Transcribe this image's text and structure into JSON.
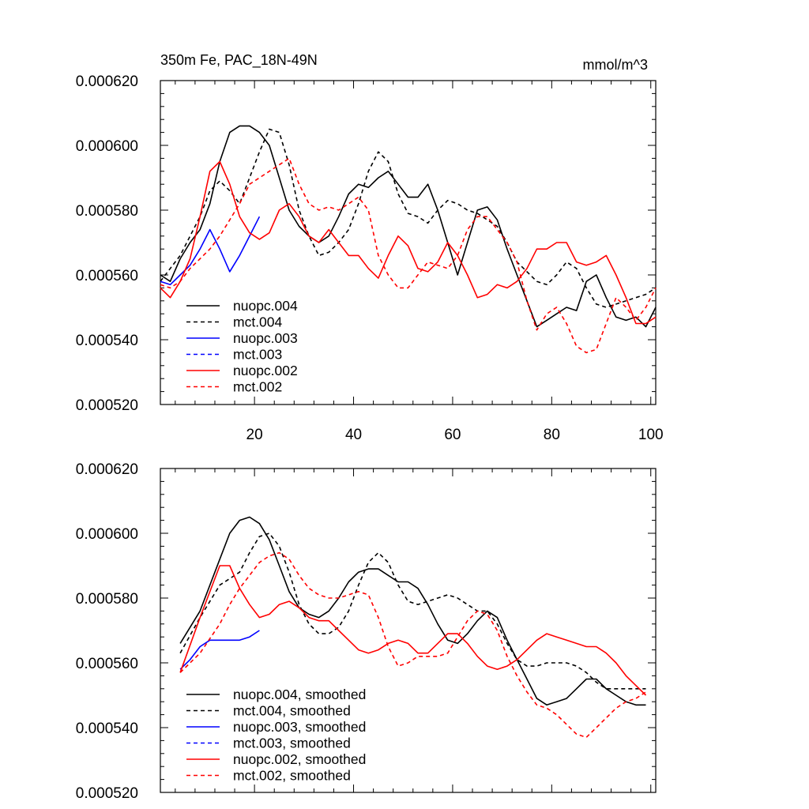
{
  "colors": {
    "black": "#000000",
    "blue": "#0000ff",
    "red": "#ff0000"
  },
  "chart_data": [
    {
      "type": "line",
      "title": "350m Fe, PAC_18N-49N",
      "units": "mmol/m^3",
      "xlim": [
        1,
        101
      ],
      "ylim": [
        0.00052,
        0.00062
      ],
      "xticks": [
        "20",
        "40",
        "60",
        "80",
        "100"
      ],
      "yticks": [
        "0.000520",
        "0.000540",
        "0.000560",
        "0.000580",
        "0.000600",
        "0.000620"
      ],
      "legend_position": "bottom-left",
      "series": [
        {
          "name": "nuopc.004",
          "color": "black",
          "dash": "solid",
          "x": [
            1,
            3,
            5,
            7,
            9,
            11,
            13,
            15,
            17,
            19,
            21,
            23,
            25,
            27,
            29,
            31,
            33,
            35,
            37,
            39,
            41,
            43,
            45,
            47,
            49,
            51,
            53,
            55,
            57,
            59,
            61,
            63,
            65,
            67,
            69,
            71,
            73,
            75,
            77,
            79,
            81,
            83,
            85,
            87,
            89,
            91,
            93,
            95,
            97,
            99,
            101
          ],
          "values": [
            0.00056,
            0.000558,
            0.000565,
            0.00057,
            0.000574,
            0.000582,
            0.000595,
            0.000604,
            0.000606,
            0.000606,
            0.000604,
            0.0006,
            0.00059,
            0.00058,
            0.000575,
            0.000572,
            0.00057,
            0.000572,
            0.000578,
            0.000585,
            0.000588,
            0.000587,
            0.00059,
            0.000592,
            0.000588,
            0.000584,
            0.000584,
            0.000588,
            0.00058,
            0.00057,
            0.00056,
            0.00057,
            0.00058,
            0.000581,
            0.000577,
            0.000568,
            0.00056,
            0.000552,
            0.000544,
            0.000546,
            0.000548,
            0.00055,
            0.000549,
            0.000558,
            0.00056,
            0.000553,
            0.000547,
            0.000546,
            0.000547,
            0.000544,
            0.00055
          ]
        },
        {
          "name": "mct.004",
          "color": "black",
          "dash": "dashed",
          "x": [
            1,
            3,
            5,
            7,
            9,
            11,
            13,
            15,
            17,
            19,
            21,
            23,
            25,
            27,
            29,
            31,
            33,
            35,
            37,
            39,
            41,
            43,
            45,
            47,
            49,
            51,
            53,
            55,
            57,
            59,
            61,
            63,
            65,
            67,
            69,
            71,
            73,
            75,
            77,
            79,
            81,
            83,
            85,
            87,
            89,
            91,
            93,
            95,
            97,
            99,
            101
          ],
          "values": [
            0.000558,
            0.000562,
            0.000566,
            0.000572,
            0.000578,
            0.000586,
            0.000589,
            0.000586,
            0.000582,
            0.00059,
            0.000598,
            0.000605,
            0.000604,
            0.000594,
            0.00058,
            0.000572,
            0.000566,
            0.000567,
            0.00057,
            0.000574,
            0.000582,
            0.000592,
            0.000598,
            0.000595,
            0.000585,
            0.000579,
            0.000578,
            0.000576,
            0.00058,
            0.000583,
            0.000582,
            0.00058,
            0.000579,
            0.000577,
            0.000575,
            0.00057,
            0.000564,
            0.000561,
            0.000558,
            0.000557,
            0.00056,
            0.000564,
            0.000562,
            0.000556,
            0.000551,
            0.00055,
            0.000551,
            0.000552,
            0.000553,
            0.000554,
            0.000556
          ]
        },
        {
          "name": "nuopc.003",
          "color": "blue",
          "dash": "solid",
          "x": [
            1,
            3,
            5,
            7,
            9,
            11,
            13,
            15,
            17,
            19,
            21
          ],
          "values": [
            0.000558,
            0.000557,
            0.00056,
            0.000563,
            0.000568,
            0.000574,
            0.000568,
            0.000561,
            0.000566,
            0.000572,
            0.000578
          ]
        },
        {
          "name": "mct.003",
          "color": "blue",
          "dash": "dashed",
          "x": [],
          "values": []
        },
        {
          "name": "nuopc.002",
          "color": "red",
          "dash": "solid",
          "x": [
            1,
            3,
            5,
            7,
            9,
            11,
            13,
            15,
            17,
            19,
            21,
            23,
            25,
            27,
            29,
            31,
            33,
            35,
            37,
            39,
            41,
            43,
            45,
            47,
            49,
            51,
            53,
            55,
            57,
            59,
            61,
            63,
            65,
            67,
            69,
            71,
            73,
            75,
            77,
            79,
            81,
            83,
            85,
            87,
            89,
            91,
            93,
            95,
            97,
            99,
            101
          ],
          "values": [
            0.000556,
            0.000553,
            0.000558,
            0.000565,
            0.000578,
            0.000592,
            0.000595,
            0.000588,
            0.000578,
            0.000573,
            0.000571,
            0.000573,
            0.00058,
            0.000582,
            0.000578,
            0.000572,
            0.00057,
            0.000574,
            0.00057,
            0.000566,
            0.000566,
            0.000562,
            0.000559,
            0.000566,
            0.000572,
            0.000569,
            0.000562,
            0.000561,
            0.000564,
            0.00057,
            0.000566,
            0.00056,
            0.000553,
            0.000554,
            0.000557,
            0.000556,
            0.000558,
            0.000562,
            0.000568,
            0.000568,
            0.00057,
            0.00057,
            0.000564,
            0.000563,
            0.000564,
            0.000566,
            0.00056,
            0.000553,
            0.000545,
            0.000545,
            0.000547
          ]
        },
        {
          "name": "mct.002",
          "color": "red",
          "dash": "dashed",
          "x": [
            1,
            3,
            5,
            7,
            9,
            11,
            13,
            15,
            17,
            19,
            21,
            23,
            25,
            27,
            29,
            31,
            33,
            35,
            37,
            39,
            41,
            43,
            45,
            47,
            49,
            51,
            53,
            55,
            57,
            59,
            61,
            63,
            65,
            67,
            69,
            71,
            73,
            75,
            77,
            79,
            81,
            83,
            85,
            87,
            89,
            91,
            93,
            95,
            97,
            99,
            101
          ],
          "values": [
            0.000557,
            0.000556,
            0.000558,
            0.000562,
            0.000565,
            0.000568,
            0.000572,
            0.000577,
            0.000582,
            0.000588,
            0.00059,
            0.000592,
            0.000594,
            0.000596,
            0.000588,
            0.000582,
            0.00058,
            0.000581,
            0.00058,
            0.000582,
            0.000584,
            0.00058,
            0.000566,
            0.00056,
            0.000556,
            0.000556,
            0.00056,
            0.000564,
            0.000563,
            0.000562,
            0.000566,
            0.000574,
            0.000578,
            0.000578,
            0.000574,
            0.00057,
            0.000564,
            0.000552,
            0.000543,
            0.000548,
            0.00055,
            0.000545,
            0.000538,
            0.000536,
            0.000537,
            0.000545,
            0.000553,
            0.00055,
            0.000546,
            0.00055,
            0.000556
          ]
        }
      ]
    },
    {
      "type": "line",
      "title": "",
      "units": "",
      "xlim": [
        1,
        101
      ],
      "ylim": [
        0.00052,
        0.00062
      ],
      "xticks": [],
      "yticks": [
        "0.000520",
        "0.000540",
        "0.000560",
        "0.000580",
        "0.000600",
        "0.000620"
      ],
      "legend_position": "bottom-left",
      "series": [
        {
          "name": "nuopc.004, smoothed",
          "color": "black",
          "dash": "solid",
          "x": [
            5,
            9,
            13,
            15,
            17,
            19,
            21,
            23,
            25,
            27,
            29,
            31,
            33,
            35,
            37,
            39,
            41,
            43,
            45,
            47,
            49,
            51,
            53,
            55,
            57,
            59,
            61,
            63,
            65,
            67,
            69,
            71,
            73,
            75,
            77,
            79,
            81,
            83,
            85,
            87,
            89,
            91,
            93,
            95,
            97,
            99
          ],
          "values": [
            0.000566,
            0.000576,
            0.000592,
            0.0006,
            0.000604,
            0.000605,
            0.000603,
            0.000598,
            0.00059,
            0.000582,
            0.000577,
            0.000575,
            0.000574,
            0.000576,
            0.00058,
            0.000585,
            0.000588,
            0.000589,
            0.000589,
            0.000587,
            0.000585,
            0.000585,
            0.000583,
            0.000578,
            0.000572,
            0.000567,
            0.000566,
            0.000569,
            0.000573,
            0.000576,
            0.000574,
            0.000567,
            0.000561,
            0.000555,
            0.000549,
            0.000547,
            0.000548,
            0.000549,
            0.000552,
            0.000555,
            0.000555,
            0.000552,
            0.00055,
            0.000548,
            0.000547,
            0.000547
          ]
        },
        {
          "name": "mct.004, smoothed",
          "color": "black",
          "dash": "dashed",
          "x": [
            5,
            9,
            13,
            15,
            17,
            19,
            21,
            23,
            25,
            27,
            29,
            31,
            33,
            35,
            37,
            39,
            41,
            43,
            45,
            47,
            49,
            51,
            53,
            55,
            57,
            59,
            61,
            63,
            65,
            67,
            69,
            71,
            73,
            75,
            77,
            79,
            81,
            83,
            85,
            87,
            89,
            91,
            93,
            95,
            97,
            99
          ],
          "values": [
            0.000563,
            0.000574,
            0.000584,
            0.000586,
            0.000588,
            0.000594,
            0.000599,
            0.0006,
            0.000596,
            0.000588,
            0.000578,
            0.000572,
            0.000569,
            0.000569,
            0.000571,
            0.000576,
            0.000584,
            0.000591,
            0.000594,
            0.000591,
            0.000584,
            0.000579,
            0.000578,
            0.000579,
            0.00058,
            0.000581,
            0.00058,
            0.000578,
            0.000576,
            0.000576,
            0.000572,
            0.000566,
            0.000561,
            0.000559,
            0.000559,
            0.00056,
            0.00056,
            0.00056,
            0.000559,
            0.000557,
            0.000554,
            0.000552,
            0.000552,
            0.000552,
            0.000552,
            0.000552
          ]
        },
        {
          "name": "nuopc.003, smoothed",
          "color": "blue",
          "dash": "solid",
          "x": [
            5,
            7,
            9,
            11,
            13,
            15,
            17,
            19,
            21
          ],
          "values": [
            0.000558,
            0.000561,
            0.000565,
            0.000567,
            0.000567,
            0.000567,
            0.000567,
            0.000568,
            0.00057
          ]
        },
        {
          "name": "mct.003, smoothed",
          "color": "blue",
          "dash": "dashed",
          "x": [],
          "values": []
        },
        {
          "name": "nuopc.002, smoothed",
          "color": "red",
          "dash": "solid",
          "x": [
            5,
            9,
            13,
            15,
            17,
            19,
            21,
            23,
            25,
            27,
            29,
            31,
            33,
            35,
            37,
            39,
            41,
            43,
            45,
            47,
            49,
            51,
            53,
            55,
            57,
            59,
            61,
            63,
            65,
            67,
            69,
            71,
            73,
            75,
            77,
            79,
            81,
            83,
            85,
            87,
            89,
            91,
            93,
            95,
            97,
            99
          ],
          "values": [
            0.000557,
            0.000574,
            0.00059,
            0.00059,
            0.000583,
            0.000578,
            0.000574,
            0.000575,
            0.000578,
            0.000579,
            0.000577,
            0.000574,
            0.000573,
            0.000573,
            0.00057,
            0.000567,
            0.000564,
            0.000563,
            0.000564,
            0.000566,
            0.000567,
            0.000566,
            0.000563,
            0.000563,
            0.000566,
            0.000569,
            0.000569,
            0.000566,
            0.000562,
            0.000559,
            0.000558,
            0.000559,
            0.000561,
            0.000564,
            0.000567,
            0.000569,
            0.000568,
            0.000567,
            0.000566,
            0.000565,
            0.000565,
            0.000563,
            0.00056,
            0.000556,
            0.000553,
            0.00055
          ]
        },
        {
          "name": "mct.002, smoothed",
          "color": "red",
          "dash": "dashed",
          "x": [
            5,
            9,
            13,
            15,
            17,
            19,
            21,
            23,
            25,
            27,
            29,
            31,
            33,
            35,
            37,
            39,
            41,
            43,
            45,
            47,
            49,
            51,
            53,
            55,
            57,
            59,
            61,
            63,
            65,
            67,
            69,
            71,
            73,
            75,
            77,
            79,
            81,
            83,
            85,
            87,
            89,
            91,
            93,
            95,
            97,
            99
          ],
          "values": [
            0.000557,
            0.000563,
            0.000572,
            0.000578,
            0.000583,
            0.000587,
            0.000591,
            0.000593,
            0.000594,
            0.000592,
            0.000587,
            0.000583,
            0.000581,
            0.00058,
            0.00058,
            0.000581,
            0.000582,
            0.000581,
            0.000574,
            0.000565,
            0.000559,
            0.00056,
            0.000562,
            0.000562,
            0.000562,
            0.000563,
            0.000568,
            0.000573,
            0.000576,
            0.000575,
            0.00057,
            0.000562,
            0.000556,
            0.000551,
            0.000547,
            0.000546,
            0.000544,
            0.000541,
            0.000538,
            0.000537,
            0.00054,
            0.000543,
            0.000546,
            0.000548,
            0.000549,
            0.000551
          ]
        }
      ]
    }
  ]
}
